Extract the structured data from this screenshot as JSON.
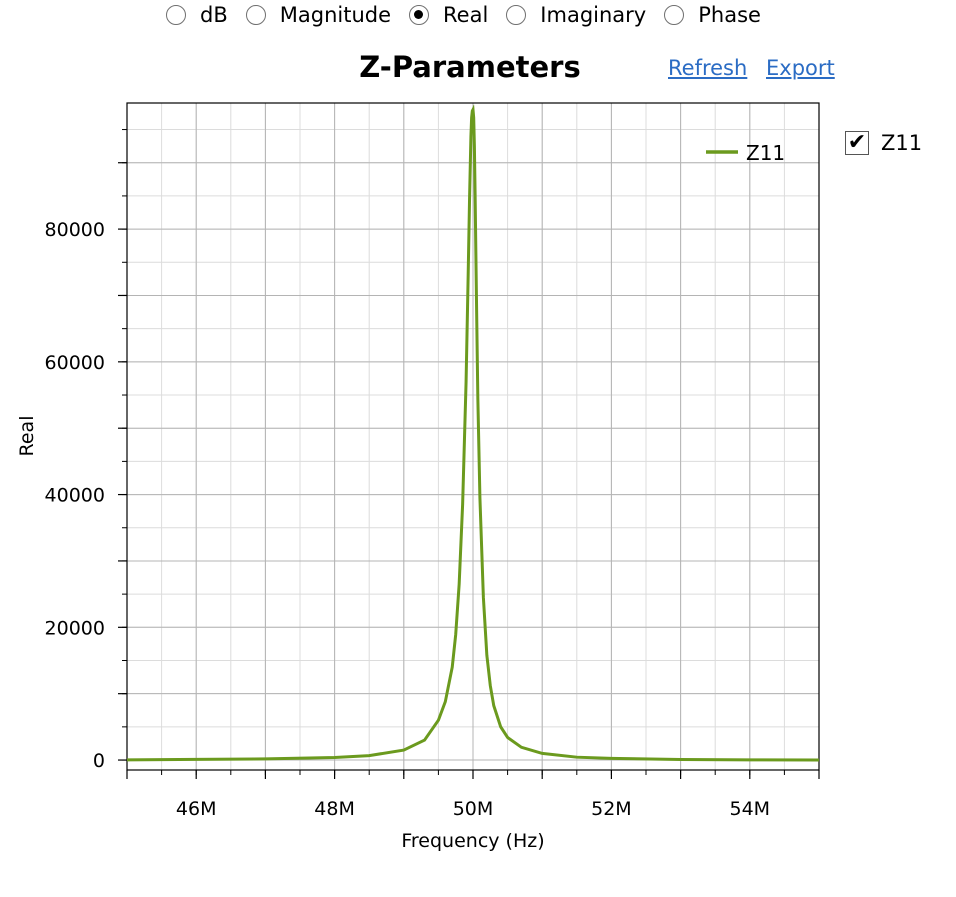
{
  "modes": [
    {
      "label": "dB",
      "selected": false
    },
    {
      "label": "Magnitude",
      "selected": false
    },
    {
      "label": "Real",
      "selected": true
    },
    {
      "label": "Imaginary",
      "selected": false
    },
    {
      "label": "Phase",
      "selected": false
    }
  ],
  "header": {
    "title": "Z-Parameters",
    "refresh_label": "Refresh",
    "export_label": "Export"
  },
  "series_toggle": {
    "label": "Z11",
    "checked": true,
    "check_glyph": "✔"
  },
  "colors": {
    "series": "#6b9a1e",
    "grid_major": "#b4b4b4",
    "grid_minor": "#dcdcdc",
    "link": "#2b6cc4"
  },
  "chart_data": {
    "type": "line",
    "title": "Z-Parameters",
    "xlabel": "Frequency (Hz)",
    "ylabel": "Real",
    "xlim": [
      45000000,
      55000000
    ],
    "ylim": [
      -1500,
      99000
    ],
    "x_ticks": [
      46000000,
      48000000,
      50000000,
      52000000,
      54000000
    ],
    "x_tick_labels": [
      "46M",
      "48M",
      "50M",
      "52M",
      "54M"
    ],
    "y_ticks": [
      0,
      20000,
      40000,
      60000,
      80000
    ],
    "y_tick_labels": [
      "0",
      "20000",
      "40000",
      "60000",
      "80000"
    ],
    "grid": true,
    "legend": "top-right",
    "series": [
      {
        "name": "Z11",
        "color": "#6b9a1e",
        "x": [
          45000000,
          46000000,
          47000000,
          48000000,
          48500000,
          49000000,
          49300000,
          49500000,
          49600000,
          49700000,
          49750000,
          49800000,
          49850000,
          49900000,
          49930000,
          49950000,
          49970000,
          49980000,
          49990000,
          50000000,
          50010000,
          50020000,
          50030000,
          50050000,
          50070000,
          50100000,
          50150000,
          50200000,
          50250000,
          50300000,
          50400000,
          50500000,
          50700000,
          51000000,
          51500000,
          52000000,
          53000000,
          54000000,
          55000000
        ],
        "y": [
          24,
          96,
          170,
          380,
          665,
          1500,
          3000,
          6000,
          8800,
          14000,
          18900,
          26500,
          38500,
          57000,
          73000,
          84500,
          94000,
          96800,
          97800,
          98000,
          96800,
          92500,
          85500,
          69500,
          54500,
          39500,
          24500,
          15800,
          11200,
          8200,
          5000,
          3400,
          1920,
          1000,
          430,
          260,
          90,
          30,
          8
        ]
      }
    ]
  }
}
